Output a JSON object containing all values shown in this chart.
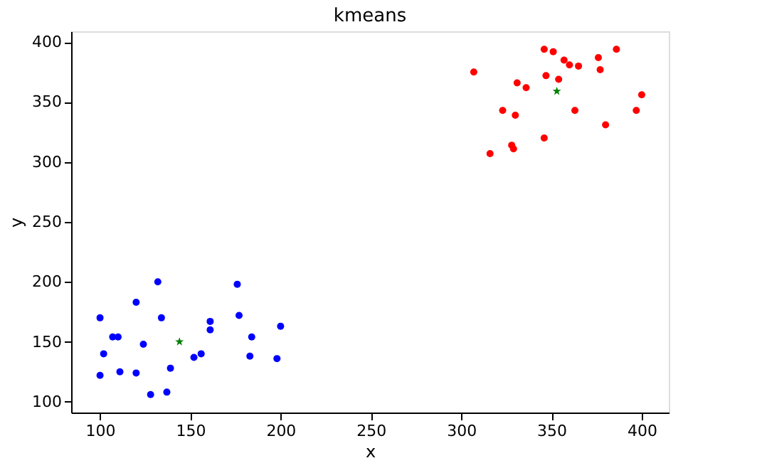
{
  "chart_data": {
    "type": "scatter",
    "title": "kmeans",
    "xlabel": "x",
    "ylabel": "y",
    "xlim": [
      84,
      415
    ],
    "ylim": [
      91,
      409
    ],
    "xticks": [
      100,
      150,
      200,
      250,
      300,
      350,
      400
    ],
    "yticks": [
      100,
      150,
      200,
      250,
      300,
      350,
      400
    ],
    "grid": false,
    "series": [
      {
        "color": "#0000ff",
        "marker": "circle",
        "x": [
          100,
          102,
          100,
          107,
          110,
          111,
          120,
          120,
          124,
          128,
          132,
          134,
          137,
          139,
          152,
          156,
          161,
          161,
          176,
          177,
          184,
          183,
          198,
          200
        ],
        "values": [
          170,
          140,
          122,
          154,
          154,
          125,
          183,
          124,
          148,
          106,
          200,
          170,
          108,
          128,
          137,
          140,
          167,
          160,
          198,
          172,
          154,
          138,
          136,
          163
        ]
      },
      {
        "color": "#ff0000",
        "marker": "circle",
        "x": [
          346,
          351,
          386,
          376,
          357,
          360,
          365,
          377,
          307,
          347,
          354,
          331,
          336,
          400,
          323,
          330,
          363,
          397,
          380,
          346,
          328,
          329,
          316
        ],
        "values": [
          394,
          392,
          394,
          387,
          385,
          381,
          380,
          377,
          375,
          372,
          369,
          366,
          362,
          356,
          343,
          339,
          343,
          343,
          331,
          320,
          314,
          311,
          307
        ]
      },
      {
        "color": "#008000",
        "marker": "star",
        "x": [
          144,
          353
        ],
        "values": [
          150,
          359
        ]
      }
    ]
  }
}
